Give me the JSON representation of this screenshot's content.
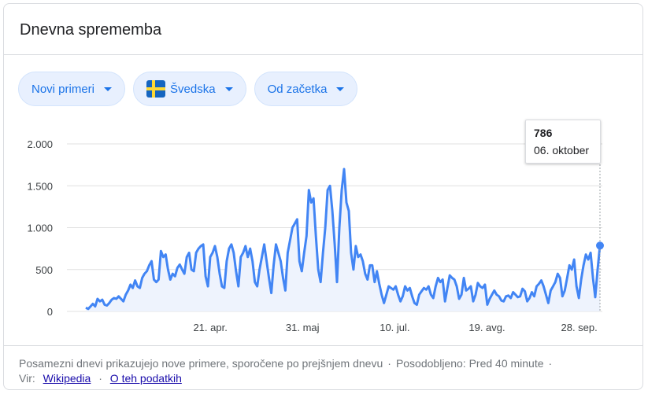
{
  "title": "Dnevna sprememba",
  "filters": [
    {
      "label": "Novi primeri"
    },
    {
      "label": "Švedska",
      "flag": "sweden-flag-icon"
    },
    {
      "label": "Od začetka"
    }
  ],
  "colors": {
    "line": "#4285f4",
    "fill": "#eef3fd",
    "grid": "#e0e0e0",
    "accent": "#1a73e8",
    "chip_bg": "#e8f0fe"
  },
  "tooltip": {
    "value": "786",
    "date": "06. oktober"
  },
  "footer": {
    "note": "Posamezni dnevi prikazujejo nove primere, sporočene po prejšnjem dnevu",
    "updated": "Posodobljeno: Pred 40 minute",
    "source_label": "Vir:",
    "source_link": "Wikipedia",
    "about_link": "O teh podatkih"
  },
  "chart_data": {
    "type": "line",
    "ylim": [
      0,
      2000
    ],
    "yticks": [
      {
        "value": 0,
        "label": "0"
      },
      {
        "value": 500,
        "label": "500"
      },
      {
        "value": 1000,
        "label": "1.000"
      },
      {
        "value": 1500,
        "label": "1.500"
      },
      {
        "value": 2000,
        "label": "2.000"
      }
    ],
    "xticks": [
      {
        "date": "2020-04-21",
        "label": "21. apr."
      },
      {
        "date": "2020-05-31",
        "label": "31. maj"
      },
      {
        "date": "2020-07-10",
        "label": "10. jul."
      },
      {
        "date": "2020-08-19",
        "label": "19. avg."
      },
      {
        "date": "2020-09-28",
        "label": "28. sep."
      }
    ],
    "x_start": "2020-02-27",
    "x_end": "2020-10-07",
    "series": [
      {
        "values": [
          45,
          30,
          60,
          90,
          60,
          150,
          120,
          140,
          80,
          70,
          100,
          140,
          160,
          150,
          180,
          150,
          120,
          200,
          250,
          320,
          280,
          370,
          300,
          280,
          400,
          450,
          480,
          550,
          600,
          380,
          350,
          380,
          720,
          650,
          680,
          500,
          380,
          450,
          420,
          520,
          560,
          500,
          450,
          650,
          700,
          500,
          480,
          700,
          750,
          780,
          800,
          420,
          300,
          650,
          700,
          780,
          650,
          450,
          300,
          280,
          600,
          750,
          800,
          700,
          480,
          300,
          650,
          700,
          780,
          650,
          750,
          600,
          350,
          300,
          500,
          650,
          800,
          600,
          400,
          220,
          550,
          800,
          700,
          600,
          400,
          250,
          700,
          850,
          1000,
          1050,
          1100,
          600,
          480,
          700,
          900,
          1450,
          1300,
          1350,
          900,
          500,
          350,
          700,
          1000,
          1450,
          1500,
          1200,
          800,
          350,
          1000,
          1450,
          1700,
          1300,
          1200,
          700,
          500,
          780,
          650,
          680,
          600,
          450,
          380,
          550,
          550,
          350,
          480,
          330,
          200,
          100,
          200,
          300,
          280,
          260,
          300,
          200,
          120,
          180,
          300,
          250,
          280,
          180,
          100,
          80,
          200,
          240,
          280,
          260,
          300,
          200,
          160,
          300,
          400,
          350,
          380,
          120,
          280,
          430,
          400,
          380,
          300,
          150,
          200,
          400,
          250,
          270,
          300,
          120,
          200,
          340,
          300,
          280,
          320,
          80,
          150,
          200,
          250,
          200,
          180,
          130,
          120,
          180,
          190,
          160,
          230,
          200,
          170,
          180,
          270,
          240,
          120,
          160,
          230,
          180,
          300,
          330,
          370,
          300,
          200,
          100,
          250,
          300,
          350,
          450,
          400,
          180,
          250,
          400,
          550,
          500,
          620,
          300,
          160,
          380,
          550,
          680,
          620,
          700,
          400,
          170,
          500,
          786
        ]
      }
    ]
  }
}
